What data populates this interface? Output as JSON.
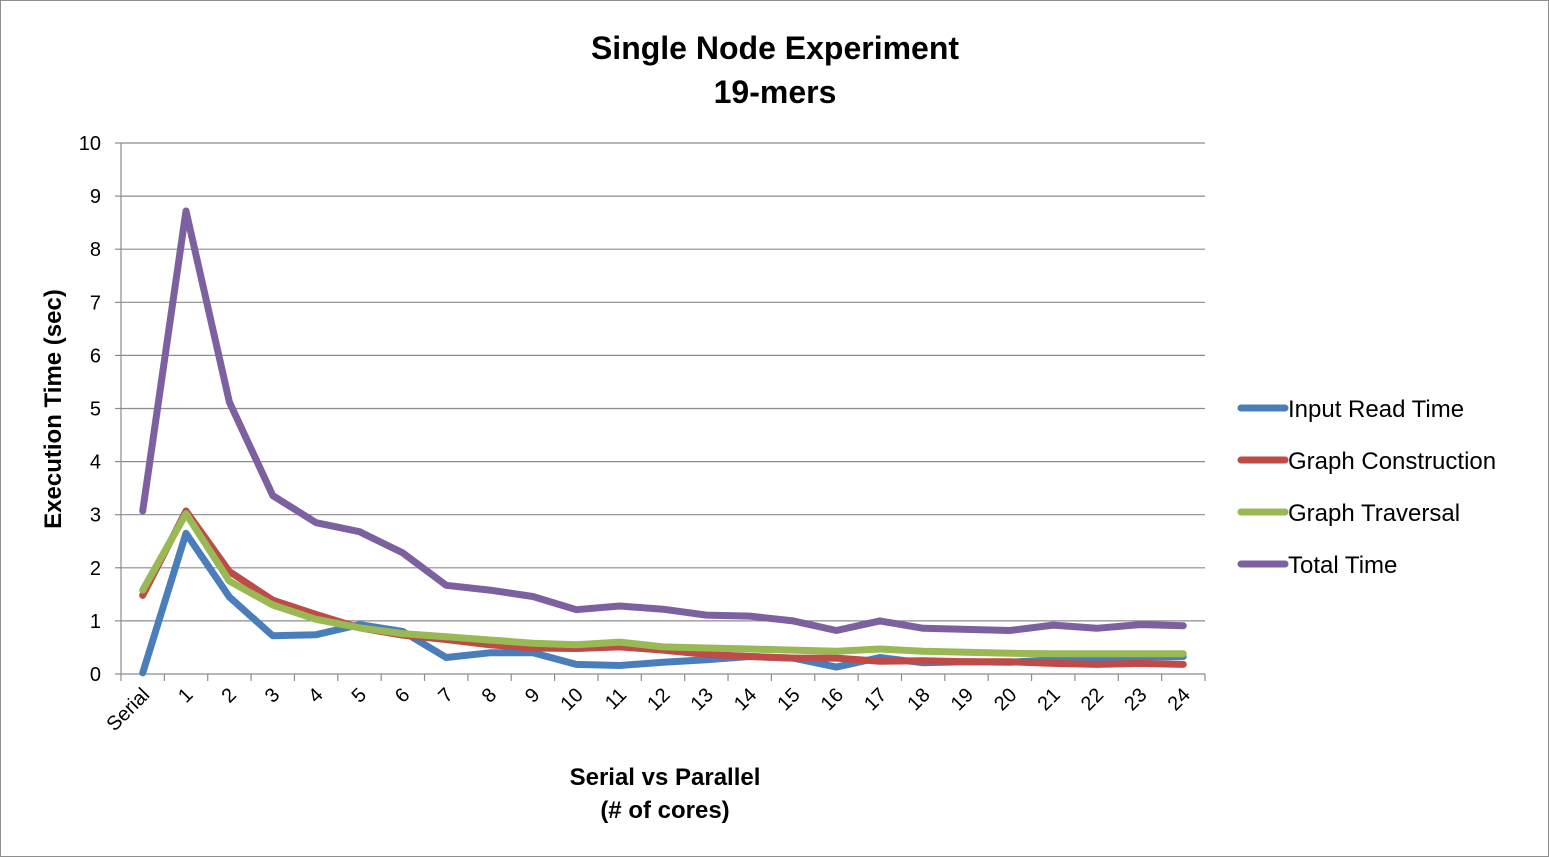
{
  "chart_data": {
    "type": "line",
    "title": "Single Node Experiment",
    "subtitle": "19-mers",
    "xlabel": "Serial vs Parallel",
    "xlabel_sub": "(# of cores)",
    "ylabel": "Execution Time (sec)",
    "ylim": [
      0,
      10
    ],
    "yticks": [
      "0",
      "1",
      "2",
      "3",
      "4",
      "5",
      "6",
      "7",
      "8",
      "9",
      "10"
    ],
    "grid": true,
    "legend_position": "right",
    "categories": [
      "Serial",
      "1",
      "2",
      "3",
      "4",
      "5",
      "6",
      "7",
      "8",
      "9",
      "10",
      "11",
      "12",
      "13",
      "14",
      "15",
      "16",
      "17",
      "18",
      "19",
      "20",
      "21",
      "22",
      "23",
      "24"
    ],
    "series": [
      {
        "name": "Input Read Time",
        "color": "#4a7ebb",
        "values": [
          0.02,
          2.65,
          1.45,
          0.72,
          0.74,
          0.93,
          0.8,
          0.31,
          0.4,
          0.4,
          0.18,
          0.16,
          0.22,
          0.27,
          0.33,
          0.3,
          0.13,
          0.31,
          0.21,
          0.23,
          0.22,
          0.27,
          0.27,
          0.32,
          0.33
        ]
      },
      {
        "name": "Graph Construction",
        "color": "#be4b48",
        "values": [
          1.48,
          3.07,
          1.93,
          1.39,
          1.12,
          0.87,
          0.73,
          0.65,
          0.55,
          0.49,
          0.48,
          0.51,
          0.45,
          0.37,
          0.33,
          0.3,
          0.3,
          0.24,
          0.25,
          0.23,
          0.23,
          0.2,
          0.18,
          0.2,
          0.18
        ]
      },
      {
        "name": "Graph Traversal",
        "color": "#98b954",
        "values": [
          1.58,
          3.02,
          1.75,
          1.3,
          1.03,
          0.87,
          0.76,
          0.7,
          0.64,
          0.58,
          0.55,
          0.6,
          0.51,
          0.49,
          0.47,
          0.45,
          0.43,
          0.47,
          0.43,
          0.41,
          0.39,
          0.38,
          0.38,
          0.38,
          0.38
        ]
      },
      {
        "name": "Total Time",
        "color": "#7d60a0",
        "values": [
          3.07,
          8.72,
          5.12,
          3.36,
          2.85,
          2.68,
          2.28,
          1.67,
          1.58,
          1.46,
          1.21,
          1.28,
          1.22,
          1.11,
          1.09,
          1.0,
          0.82,
          1.0,
          0.86,
          0.84,
          0.82,
          0.92,
          0.86,
          0.93,
          0.91
        ]
      }
    ]
  }
}
